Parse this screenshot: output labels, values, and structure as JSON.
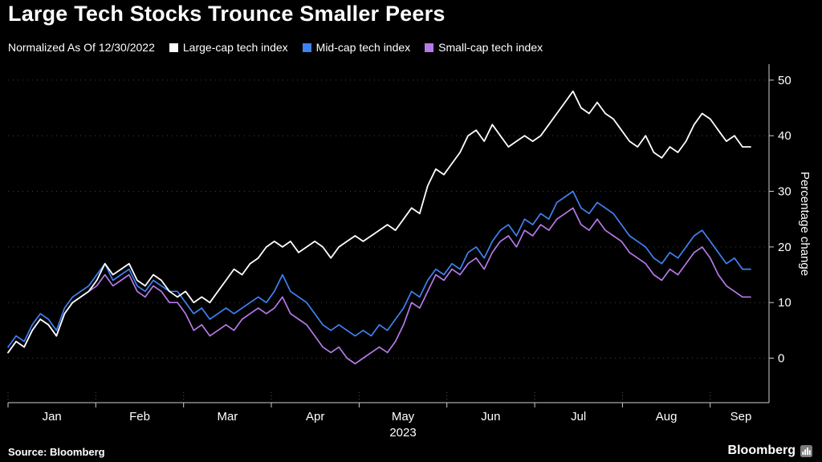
{
  "chart_data": {
    "type": "line",
    "title": "Large Tech Stocks Trounce Smaller Peers",
    "subtitle": "Normalized As Of 12/30/2022",
    "ylabel": "Percentage change",
    "background": "#000000",
    "grid": "horizontal-dotted",
    "legend_position": "top",
    "ylim": [
      -8,
      52
    ],
    "yticks": [
      0,
      10,
      20,
      30,
      40,
      50
    ],
    "x_axis": {
      "ticklabels": [
        "Jan",
        "Feb",
        "Mar",
        "Apr",
        "May",
        "Jun",
        "Jul",
        "Aug",
        "Sep"
      ],
      "year_label": "2023"
    },
    "series": [
      {
        "name": "Large-cap tech index",
        "color": "#ffffff",
        "values": [
          1,
          3,
          2,
          5,
          7,
          6,
          4,
          8,
          10,
          11,
          12,
          14,
          17,
          15,
          16,
          17,
          14,
          13,
          15,
          14,
          12,
          11,
          12,
          10,
          11,
          10,
          12,
          14,
          16,
          15,
          17,
          18,
          20,
          21,
          20,
          21,
          19,
          20,
          21,
          20,
          18,
          20,
          21,
          22,
          21,
          22,
          23,
          24,
          23,
          25,
          27,
          26,
          31,
          34,
          33,
          35,
          37,
          40,
          41,
          39,
          42,
          40,
          38,
          39,
          40,
          39,
          40,
          42,
          44,
          46,
          48,
          45,
          44,
          46,
          44,
          43,
          41,
          39,
          38,
          40,
          37,
          36,
          38,
          37,
          39,
          42,
          44,
          43,
          41,
          39,
          40,
          38,
          38
        ]
      },
      {
        "name": "Mid-cap tech index",
        "color": "#3f82f2",
        "values": [
          2,
          4,
          3,
          6,
          8,
          7,
          5,
          9,
          11,
          12,
          13,
          15,
          17,
          14,
          15,
          16,
          13,
          12,
          14,
          13,
          12,
          12,
          10,
          8,
          9,
          7,
          8,
          9,
          8,
          9,
          10,
          11,
          10,
          12,
          15,
          12,
          11,
          10,
          8,
          6,
          5,
          6,
          5,
          4,
          5,
          4,
          6,
          5,
          7,
          9,
          12,
          11,
          14,
          16,
          15,
          17,
          16,
          19,
          20,
          18,
          21,
          23,
          24,
          22,
          25,
          24,
          26,
          25,
          28,
          29,
          30,
          27,
          26,
          28,
          27,
          26,
          24,
          22,
          21,
          20,
          18,
          17,
          19,
          18,
          20,
          22,
          23,
          21,
          19,
          17,
          18,
          16,
          16
        ]
      },
      {
        "name": "Small-cap tech index",
        "color": "#b579e8",
        "values": [
          1,
          3,
          2,
          5,
          7,
          6,
          4,
          8,
          10,
          11,
          12,
          13,
          15,
          13,
          14,
          15,
          12,
          11,
          13,
          12,
          10,
          10,
          8,
          5,
          6,
          4,
          5,
          6,
          5,
          7,
          8,
          9,
          8,
          9,
          11,
          8,
          7,
          6,
          4,
          2,
          1,
          2,
          0,
          -1,
          0,
          1,
          2,
          1,
          3,
          6,
          10,
          9,
          12,
          15,
          14,
          16,
          15,
          17,
          18,
          16,
          19,
          21,
          22,
          20,
          23,
          22,
          24,
          23,
          25,
          26,
          27,
          24,
          23,
          25,
          23,
          22,
          21,
          19,
          18,
          17,
          15,
          14,
          16,
          15,
          17,
          19,
          20,
          18,
          15,
          13,
          12,
          11,
          11
        ]
      }
    ]
  },
  "footer": {
    "source": "Source: Bloomberg",
    "brand": "Bloomberg"
  }
}
